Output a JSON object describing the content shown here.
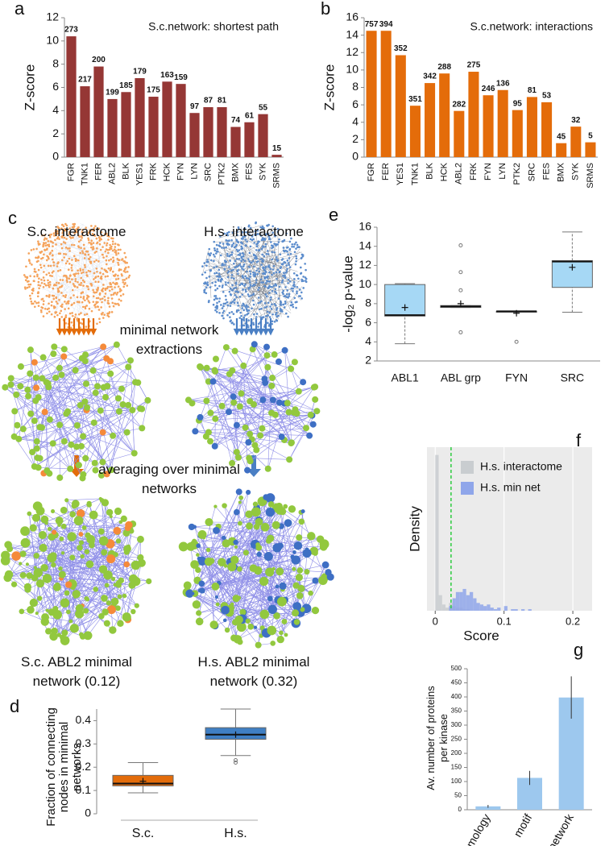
{
  "chart_data": [
    {
      "type": "bar",
      "panel": "a",
      "title": "S.c.network: shortest path",
      "ylabel": "Z-score",
      "color": "#953735",
      "categories": [
        "FGR",
        "TNK1",
        "FER",
        "ABL2",
        "BLK",
        "YES1",
        "FRK",
        "HCK",
        "FYN",
        "LYN",
        "SRC",
        "PTK2",
        "BMX",
        "FES",
        "SYK",
        "SRMS"
      ],
      "values": [
        10.4,
        6.1,
        7.8,
        5.0,
        5.6,
        6.8,
        5.2,
        6.5,
        6.3,
        3.8,
        4.3,
        4.3,
        2.6,
        3.0,
        3.7,
        0.2
      ],
      "bar_labels": [
        273,
        217,
        200,
        199,
        185,
        179,
        175,
        163,
        159,
        97,
        87,
        81,
        74,
        61,
        55,
        15
      ],
      "ylim": [
        0,
        12
      ],
      "yticks": [
        0,
        2,
        4,
        6,
        8,
        10,
        12
      ]
    },
    {
      "type": "bar",
      "panel": "b",
      "title": "S.c.network: interactions",
      "ylabel": "Z-score",
      "color": "#e46c0a",
      "categories": [
        "FGR",
        "FER",
        "YES1",
        "TNK1",
        "BLK",
        "HCK",
        "ABL2",
        "FRK",
        "FYN",
        "LYN",
        "PTK2",
        "SRC",
        "FES",
        "BMX",
        "SYK",
        "SRMS"
      ],
      "values": [
        14.5,
        14.5,
        11.7,
        5.9,
        8.5,
        9.6,
        5.3,
        9.8,
        7.1,
        7.7,
        5.4,
        6.9,
        6.3,
        1.6,
        3.5,
        1.7
      ],
      "bar_labels": [
        757,
        394,
        352,
        351,
        342,
        288,
        282,
        275,
        246,
        136,
        95,
        81,
        53,
        45,
        32,
        5
      ],
      "ylim": [
        0,
        16
      ],
      "yticks": [
        0,
        2,
        4,
        6,
        8,
        10,
        12,
        14,
        16
      ]
    },
    {
      "type": "box",
      "panel": "d",
      "ylabel": "Fraction of connecting nodes in minimal networks",
      "categories": [
        "S.c.",
        "H.s."
      ],
      "boxes": [
        {
          "whisker_low": 0.09,
          "q1": 0.12,
          "median": 0.13,
          "q3": 0.165,
          "whisker_high": 0.22,
          "mean": 0.14,
          "outliers": [],
          "color": "#e36c0a"
        },
        {
          "whisker_low": 0.25,
          "q1": 0.32,
          "median": 0.34,
          "q3": 0.37,
          "whisker_high": 0.45,
          "mean": 0.34,
          "outliers": [
            0.23,
            0.22
          ],
          "color": "#3f7fc4"
        }
      ],
      "ylim": [
        0,
        0.45
      ],
      "yticks": [
        0,
        0.1,
        0.2,
        0.3,
        0.4
      ]
    },
    {
      "type": "box",
      "panel": "e",
      "ylabel": "-log₂ p-value",
      "categories": [
        "ABL1",
        "ABL grp",
        "FYN",
        "SRC"
      ],
      "boxes": [
        {
          "whisker_low": 3.8,
          "q1": 6.7,
          "median": 6.8,
          "q3": 10.0,
          "whisker_high": 10.1,
          "mean": 7.6,
          "outliers": [],
          "color": "#a6d8f5"
        },
        {
          "whisker_low": 7.6,
          "q1": 7.6,
          "median": 7.7,
          "q3": 7.8,
          "whisker_high": 7.8,
          "mean": 8.0,
          "outliers": [
            14.1,
            11.3,
            9.4,
            5.0
          ],
          "color": "#ffffff"
        },
        {
          "whisker_low": 7.1,
          "q1": 7.1,
          "median": 7.2,
          "q3": 7.2,
          "whisker_high": 7.2,
          "mean": 7.0,
          "outliers": [
            4.0
          ],
          "color": "#ffffff"
        },
        {
          "whisker_low": 7.1,
          "q1": 9.7,
          "median": 12.4,
          "q3": 12.5,
          "whisker_high": 15.5,
          "mean": 11.8,
          "outliers": [],
          "color": "#a6d8f5"
        }
      ],
      "ylim": [
        2,
        16
      ],
      "yticks": [
        2,
        4,
        6,
        8,
        10,
        12,
        14,
        16
      ]
    },
    {
      "type": "histogram",
      "panel": "f",
      "xlabel": "Score",
      "ylabel": "Density",
      "bins": [
        0,
        0.005,
        0.01,
        0.015,
        0.02,
        0.025,
        0.03,
        0.035,
        0.04,
        0.045,
        0.05,
        0.055,
        0.06,
        0.065,
        0.07,
        0.075,
        0.08,
        0.085,
        0.09,
        0.095,
        0.1,
        0.105,
        0.11,
        0.115,
        0.12,
        0.125,
        0.13,
        0.135,
        0.14,
        0.145
      ],
      "series": [
        {
          "name": "H.s. interactome",
          "color": "#c9cdd0",
          "values": [
            100,
            10,
            4,
            2,
            5,
            3,
            2,
            2,
            1,
            1,
            0,
            0,
            0,
            0,
            0,
            0,
            0,
            0,
            0,
            0,
            0,
            0,
            0,
            0,
            0,
            0,
            0,
            0,
            0
          ]
        },
        {
          "name": "H.s. min net",
          "color": "#8fa6ea",
          "values": [
            0,
            0,
            0,
            0,
            3,
            8,
            12,
            12,
            14,
            10,
            12,
            8,
            5,
            4,
            3,
            4,
            2,
            1,
            2,
            0,
            3,
            0,
            1,
            1,
            0,
            1,
            0,
            1,
            0
          ]
        }
      ],
      "threshold": 0.023,
      "xlim": [
        -0.012,
        0.228
      ],
      "xticks": [
        0,
        0.1,
        0.2
      ],
      "ylim": [
        0,
        105
      ]
    },
    {
      "type": "bar",
      "panel": "g",
      "ylabel": "Av. number of proteins per kinase",
      "color": "#9dc8ee",
      "categories": [
        "homology",
        "motif",
        "network"
      ],
      "values": [
        12,
        113,
        398
      ],
      "errors": [
        5,
        25,
        75
      ],
      "ylim": [
        0,
        500
      ],
      "yticks": [
        0,
        50,
        100,
        150,
        200,
        250,
        300,
        350,
        400,
        450,
        500
      ]
    }
  ],
  "diagram": {
    "panel": "c",
    "left_title": "S.c. interactome",
    "right_title": "H.s. interactome",
    "step1": "minimal network extractions",
    "step2": "averaging over minimal networks",
    "left_result": "S.c. ABL2 minimal network (0.12)",
    "right_result": "H.s. ABL2 minimal network (0.32)"
  }
}
